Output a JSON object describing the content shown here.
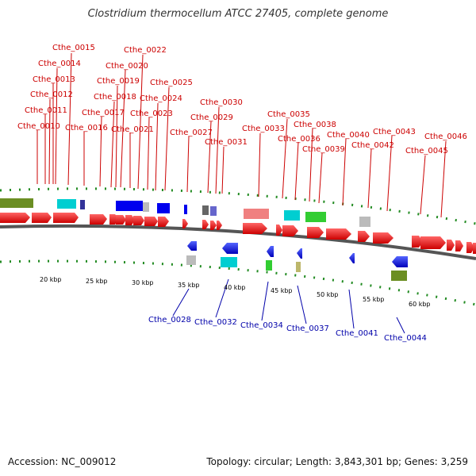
{
  "header": {
    "title": "Clostridium thermocellum ATCC 27405, complete genome"
  },
  "footer": {
    "accession": "Accession: NC_009012",
    "topology": "Topology: circular; Length: 3,843,301 bp; Genes: 3,259"
  },
  "map": {
    "kbp_ticks": [
      "20 kbp",
      "25 kbp",
      "30 kbp",
      "35 kbp",
      "40 kbp",
      "45 kbp",
      "50 kbp",
      "55 kbp",
      "60 kbp"
    ],
    "top_labels": [
      "Cthe_0010",
      "Cthe_0011",
      "Cthe_0012",
      "Cthe_0013",
      "Cthe_0014",
      "Cthe_0015",
      "Cthe_0016",
      "Cthe_0017",
      "Cthe_0018",
      "Cthe_0019",
      "Cthe_0020",
      "Cthe_0021",
      "Cthe_0022",
      "Cthe_0023",
      "Cthe_0024",
      "Cthe_0025",
      "Cthe_0027",
      "Cthe_0029",
      "Cthe_0030",
      "Cthe_0031",
      "Cthe_0033",
      "Cthe_0035",
      "Cthe_0036",
      "Cthe_0038",
      "Cthe_0039",
      "Cthe_0040",
      "Cthe_0042",
      "Cthe_0043",
      "Cthe_0045",
      "Cthe_0046"
    ],
    "bottom_labels": [
      "Cthe_0028",
      "Cthe_0032",
      "Cthe_0034",
      "Cthe_0037",
      "Cthe_0041",
      "Cthe_0044"
    ],
    "colors": {
      "forward": "#ee0000",
      "reverse": "#0000ee",
      "backbone": "#555555",
      "dots": "#228b22"
    }
  }
}
